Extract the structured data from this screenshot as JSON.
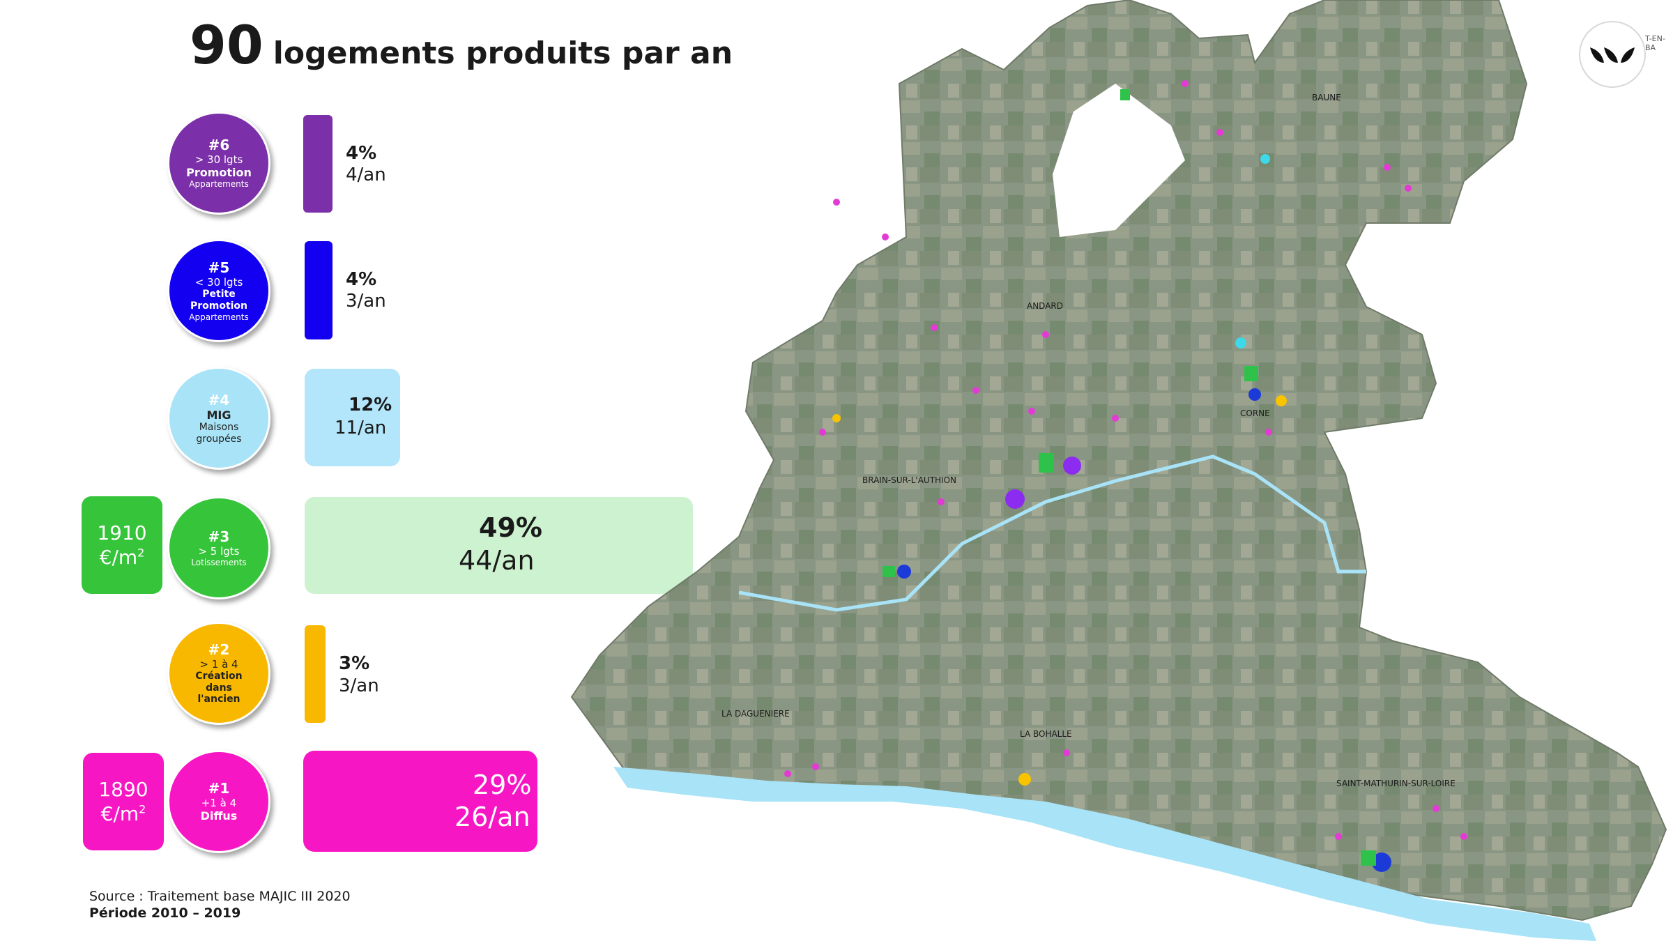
{
  "title": {
    "value": "90",
    "text": "logements produits par an"
  },
  "chart_data": {
    "type": "bar",
    "orientation": "horizontal",
    "categories": [
      {
        "rank": "#6",
        "line1": "> 30 lgts",
        "line2": "Promotion",
        "line3": "Appartements",
        "color": "#7b2fa8"
      },
      {
        "rank": "#5",
        "line1": "< 30 lgts",
        "line2": "Petite Promotion",
        "line3": "Appartements",
        "color": "#1400f0"
      },
      {
        "rank": "#4",
        "line1": "",
        "line2": "MIG",
        "line3": "Maisons groupées",
        "color": "#a8e3f7"
      },
      {
        "rank": "#3",
        "line1": "> 5 lgts",
        "line2": "",
        "line3": "Lotissements",
        "color": "#36c43a"
      },
      {
        "rank": "#2",
        "line1": "> 1 à 4",
        "line2": "Création dans l'ancien",
        "line3": "",
        "color": "#f9b800"
      },
      {
        "rank": "#1",
        "line1": "+1 à 4",
        "line2": "Diffus",
        "line3": "",
        "color": "#f716c4"
      }
    ],
    "series": [
      {
        "values_percent_label": [
          "4%",
          "4%",
          "12%",
          "49%",
          "3%",
          "29%"
        ],
        "values_percent": [
          4,
          4,
          12,
          49,
          3,
          29
        ],
        "values_per_year_label": [
          "4/an",
          "3/an",
          "11/an",
          "44/an",
          "3/an",
          "26/an"
        ],
        "values_per_year": [
          4,
          3,
          11,
          44,
          3,
          26
        ]
      }
    ],
    "bar_fill_colors": [
      "#7b2fa8",
      "#1400f0",
      "#b3e6fb",
      "#cdf2cf",
      "#f9b800",
      "#f716c4"
    ],
    "prices": [
      {
        "category": "#3",
        "value": "1910",
        "unit": "€/m",
        "exp": "2",
        "color": "#36c43a"
      },
      {
        "category": "#1",
        "value": "1890",
        "unit": "€/m",
        "exp": "2",
        "color": "#f716c4"
      }
    ]
  },
  "map": {
    "labels": [
      "BAUNE",
      "ANDARD",
      "CORNE",
      "BRAIN-SUR-L'AUTHION",
      "LA DAGUENIERE",
      "LA BOHALLE",
      "SAINT-MATHURIN-SUR-LOIRE"
    ],
    "land_color": "#8a9684",
    "river_color": "#a8e3f7"
  },
  "logo": {
    "icon": "three-leaves-icon",
    "cut_text": "T-EN-BA"
  },
  "source": {
    "line1": "Source : Traitement base MAJIC III 2020",
    "line2": "Période 2010 – 2019"
  }
}
